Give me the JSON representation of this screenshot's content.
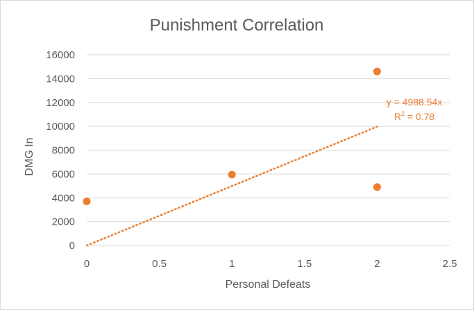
{
  "chart_data": {
    "type": "scatter",
    "title": "Punishment Correlation",
    "xlabel": "Personal Defeats",
    "ylabel": "DMG In",
    "xlim": [
      0,
      2.5
    ],
    "ylim": [
      0,
      16000
    ],
    "x_ticks": [
      "0",
      "0.5",
      "1",
      "1.5",
      "2",
      "2.5"
    ],
    "y_ticks": [
      "0",
      "2000",
      "4000",
      "6000",
      "8000",
      "10000",
      "12000",
      "14000",
      "16000"
    ],
    "grid": true,
    "legend": "none",
    "series": [
      {
        "points": [
          {
            "x": 0,
            "y": 3700
          },
          {
            "x": 1,
            "y": 5950
          },
          {
            "x": 2,
            "y": 14600
          },
          {
            "x": 2,
            "y": 4900
          }
        ]
      }
    ],
    "trendline": {
      "type": "linear",
      "slope": 4988.54,
      "intercept": 0,
      "x_range": [
        0,
        2
      ],
      "equation_label": "y = 4988.54x",
      "r2_prefix": "R",
      "r2_exp": "2",
      "r2_suffix": " = 0.78"
    },
    "colors": {
      "marker": "#ED7D31",
      "trendline": "#ED7D31",
      "grid": "#d9d9d9",
      "text": "#595959"
    }
  }
}
